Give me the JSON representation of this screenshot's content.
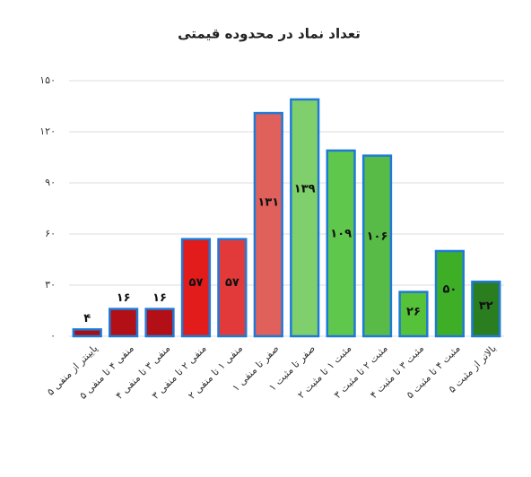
{
  "chart_data": {
    "type": "bar",
    "title": "تعداد نماد در محدوده قیمتی",
    "categories": [
      "پایینتر از منفی ۵",
      "منفی ۴ تا منفی ۵",
      "منفی ۳ تا منفی ۴",
      "منفی ۲ تا منفی ۳",
      "منفی ۱ تا منفی ۲",
      "صفر تا منفی ۱",
      "صفر تا مثبت ۱",
      "مثبت ۱ تا مثبت ۲",
      "مثبت ۲ تا مثبت ۳",
      "مثبت ۳ تا مثبت ۴",
      "مثبت ۴ تا مثبت ۵",
      "بالاتر از مثبت ۵"
    ],
    "values": [
      4,
      16,
      16,
      57,
      57,
      131,
      139,
      109,
      106,
      26,
      50,
      32
    ],
    "value_labels": [
      "۴",
      "۱۶",
      "۱۶",
      "۵۷",
      "۵۷",
      "۱۳۱",
      "۱۳۹",
      "۱۰۹",
      "۱۰۶",
      "۲۶",
      "۵۰",
      "۳۲"
    ],
    "colors": [
      "#a80f14",
      "#b30f16",
      "#b30f16",
      "#e21b1b",
      "#e23a3a",
      "#e0605c",
      "#7fd06c",
      "#5fc84c",
      "#58bb48",
      "#55c23a",
      "#3fae27",
      "#2a7e1f"
    ],
    "border_color": "#1f7ad6",
    "ylim": [
      0,
      150
    ],
    "yticks": [
      {
        "value": 0,
        "label": "۰"
      },
      {
        "value": 30,
        "label": "۳۰"
      },
      {
        "value": 60,
        "label": "۶۰"
      },
      {
        "value": 90,
        "label": "۹۰"
      },
      {
        "value": 120,
        "label": "۱۲۰"
      },
      {
        "value": 150,
        "label": "۱۵۰"
      }
    ],
    "grid": true
  }
}
